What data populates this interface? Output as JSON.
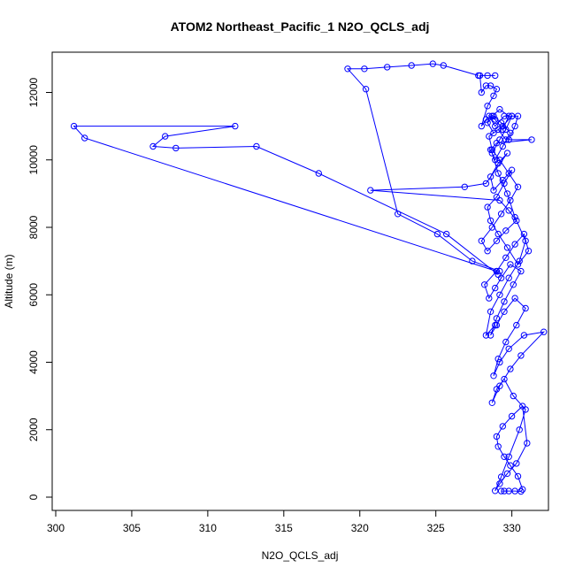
{
  "chart_data": {
    "type": "line",
    "title": "ATOM2 Northeast_Pacific_1 N2O_QCLS_adj",
    "xlabel": "N2O_QCLS_adj",
    "ylabel": "Altitude (m)",
    "xlim": [
      300,
      332
    ],
    "ylim": [
      0,
      12800
    ],
    "x_ticks": [
      300,
      305,
      310,
      315,
      320,
      325,
      330
    ],
    "y_ticks": [
      0,
      2000,
      4000,
      6000,
      8000,
      10000,
      12000
    ],
    "grid": false,
    "marker": "open-circle",
    "color": "#0000ff",
    "series": [
      {
        "x": [
          329.3,
          329.5,
          329.8,
          330.2,
          330.6,
          330.7,
          330.4,
          329.9,
          329.5,
          329.1,
          329.0,
          329.4,
          330.0,
          330.7,
          331.0,
          330.3,
          329.7,
          329.2,
          328.9,
          329.3,
          329.8,
          330.5,
          330.9,
          330.1,
          329.5,
          329.0,
          328.7,
          329.2,
          329.9,
          330.6,
          332.1,
          330.8,
          329.8,
          329.2,
          328.8,
          329.1,
          329.6,
          330.3,
          330.9,
          330.2,
          329.5,
          329.0,
          328.6,
          329.0,
          329.5,
          330.1,
          330.6,
          329.9,
          329.3,
          328.9,
          328.5,
          328.2,
          329.0,
          329.6,
          330.2,
          330.8,
          331.1,
          330.4,
          329.7,
          329.1,
          328.6,
          328.4,
          329.0,
          329.5,
          330.0,
          329.4,
          328.8,
          328.6,
          329.1,
          329.7,
          328.3,
          326.9,
          320.7,
          329.2,
          329.8,
          330.3,
          329.6,
          329.0,
          328.4,
          328.0,
          328.7,
          329.3,
          329.9,
          330.4,
          329.8,
          329.2,
          328.7,
          328.5,
          329.1,
          329.6,
          331.3,
          329.0,
          328.6,
          328.9,
          329.4,
          329.9,
          329.3,
          328.8,
          328.4,
          328.8,
          329.4,
          330.0,
          329.5,
          328.9,
          328.5,
          328.9,
          329.4,
          329.8,
          329.2,
          328.7,
          328.3,
          328.0,
          328.4,
          328.8,
          329.0,
          328.6,
          328.3,
          328.0,
          327.9,
          328.4,
          328.9
        ],
        "y": [
          180,
          180,
          180,
          180,
          170,
          230,
          620,
          940,
          1200,
          1500,
          1800,
          2100,
          2400,
          2700,
          1600,
          1000,
          700,
          400,
          190,
          600,
          1200,
          2000,
          2600,
          3000,
          3500,
          3200,
          2800,
          3300,
          3800,
          4200,
          4900,
          4800,
          4400,
          4000,
          3600,
          4100,
          4600,
          5100,
          5600,
          5900,
          5500,
          5100,
          4800,
          5300,
          5800,
          6300,
          6700,
          6900,
          6500,
          6200,
          5900,
          6300,
          6700,
          7100,
          7500,
          7800,
          7300,
          6900,
          7400,
          7800,
          8200,
          8600,
          8900,
          9300,
          9700,
          9400,
          9100,
          9500,
          9900,
          10200,
          9300,
          9200,
          9100,
          8800,
          8500,
          8200,
          7900,
          7600,
          7300,
          7600,
          8000,
          8400,
          8800,
          9200,
          9600,
          10000,
          10300,
          10700,
          10900,
          10600,
          10600,
          10500,
          10300,
          10000,
          10400,
          10800,
          11100,
          11300,
          11100,
          10800,
          11000,
          11300,
          11300,
          11000,
          11300,
          11200,
          10900,
          11300,
          11500,
          11300,
          11200,
          11000,
          11600,
          11900,
          12100,
          12200,
          12200,
          12000,
          12500,
          12500,
          12500
        ]
      },
      {
        "x": [
          327.8,
          325.5,
          324.8,
          323.4,
          321.8,
          320.3,
          319.2,
          320.4,
          322.5,
          325.1,
          327.4,
          329.2
        ],
        "y": [
          12500,
          12800,
          12850,
          12800,
          12750,
          12700,
          12700,
          12100,
          8400,
          7800,
          7000,
          6700
        ]
      },
      {
        "x": [
          329.1,
          325.7,
          317.3,
          313.2,
          307.9,
          306.4,
          307.2,
          311.8,
          301.2,
          301.9,
          329.0
        ],
        "y": [
          6600,
          7800,
          9600,
          10400,
          10350,
          10400,
          10700,
          11000,
          11000,
          10650,
          6700
        ]
      },
      {
        "x": [
          328.9,
          328.3,
          328.6,
          329.2,
          329.8,
          330.5,
          330.9,
          330.2,
          329.7,
          329.1,
          328.7,
          329.2,
          329.6,
          330.0,
          330.4,
          330.2,
          329.8
        ],
        "y": [
          5100,
          4800,
          5500,
          6000,
          6500,
          7000,
          7600,
          8300,
          9000,
          9600,
          10200,
          10600,
          10900,
          11300,
          11300,
          11000,
          10600
        ]
      }
    ]
  }
}
